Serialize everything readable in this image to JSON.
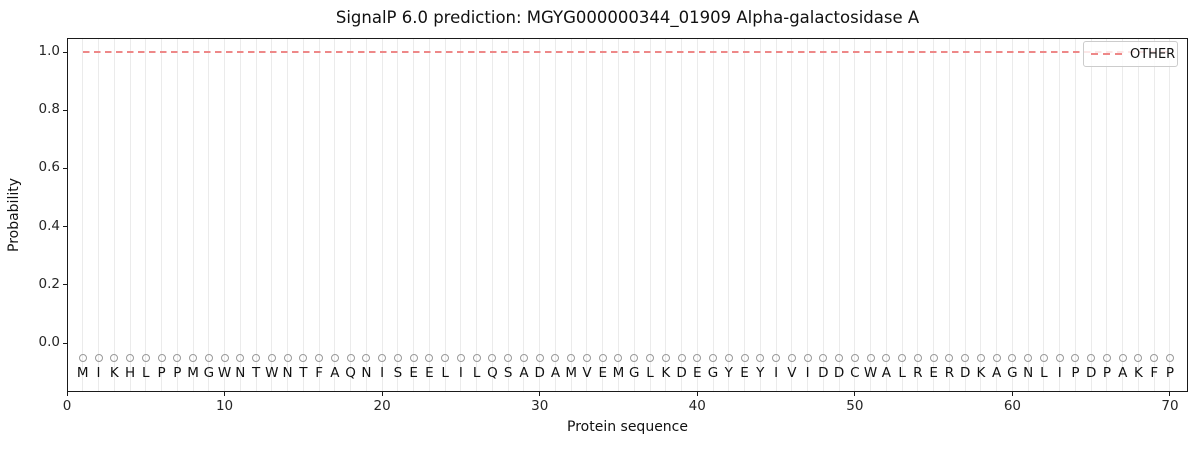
{
  "chart_data": {
    "type": "line",
    "title": "SignalP 6.0 prediction: MGYG000000344_01909 Alpha-galactosidase A",
    "xlabel": "Protein sequence",
    "ylabel": "Probability",
    "xlim": [
      0,
      71.1
    ],
    "ylim": [
      -0.17,
      1.05
    ],
    "xticks": [
      0,
      10,
      20,
      30,
      40,
      50,
      60,
      70
    ],
    "xtick_labels": [
      "0",
      "10",
      "20",
      "30",
      "40",
      "50",
      "60",
      "70"
    ],
    "yticks": [
      0.0,
      0.2,
      0.4,
      0.6,
      0.8,
      1.0
    ],
    "ytick_labels": [
      "0.0",
      "0.2",
      "0.4",
      "0.6",
      "0.8",
      "1.0"
    ],
    "grid": "vertical gridline at every residue position, no horizontal gridlines",
    "legend": {
      "position": "upper right",
      "entries": [
        {
          "label": "OTHER",
          "color": "#ee8888",
          "linestyle": "dashed"
        }
      ]
    },
    "sequence": "MIKHLPPMGWNTWNTFAQNISEELILQSADAMVEMGLKDEGYEYIVIDDCWALRERDKAGNLIPDPAKFP",
    "sequence_length": 70,
    "residue_markers": {
      "shape": "circle",
      "fill": "none",
      "edge_color": "#9a9a9a",
      "y": -0.05
    },
    "series": [
      {
        "name": "OTHER",
        "linestyle": "dashed",
        "color": "#ee8888",
        "x": [
          1,
          2,
          3,
          4,
          5,
          6,
          7,
          8,
          9,
          10,
          11,
          12,
          13,
          14,
          15,
          16,
          17,
          18,
          19,
          20,
          21,
          22,
          23,
          24,
          25,
          26,
          27,
          28,
          29,
          30,
          31,
          32,
          33,
          34,
          35,
          36,
          37,
          38,
          39,
          40,
          41,
          42,
          43,
          44,
          45,
          46,
          47,
          48,
          49,
          50,
          51,
          52,
          53,
          54,
          55,
          56,
          57,
          58,
          59,
          60,
          61,
          62,
          63,
          64,
          65,
          66,
          67,
          68,
          69,
          70
        ],
        "values": [
          1.0,
          1.0,
          1.0,
          1.0,
          1.0,
          1.0,
          1.0,
          1.0,
          1.0,
          1.0,
          1.0,
          1.0,
          1.0,
          1.0,
          1.0,
          1.0,
          1.0,
          1.0,
          1.0,
          1.0,
          1.0,
          1.0,
          1.0,
          1.0,
          1.0,
          1.0,
          1.0,
          1.0,
          1.0,
          1.0,
          1.0,
          1.0,
          1.0,
          1.0,
          1.0,
          1.0,
          1.0,
          1.0,
          1.0,
          1.0,
          1.0,
          1.0,
          1.0,
          1.0,
          1.0,
          1.0,
          1.0,
          1.0,
          1.0,
          1.0,
          1.0,
          1.0,
          1.0,
          1.0,
          1.0,
          1.0,
          1.0,
          1.0,
          1.0,
          1.0,
          1.0,
          1.0,
          1.0,
          1.0,
          1.0,
          1.0,
          1.0,
          1.0,
          1.0,
          1.0
        ]
      }
    ],
    "colors": {
      "series_line": "#ee8888",
      "gridline": "#ebebeb",
      "marker_edge": "#9a9a9a",
      "frame": "#1a1a1a",
      "legend_border": "#cccccc"
    }
  }
}
